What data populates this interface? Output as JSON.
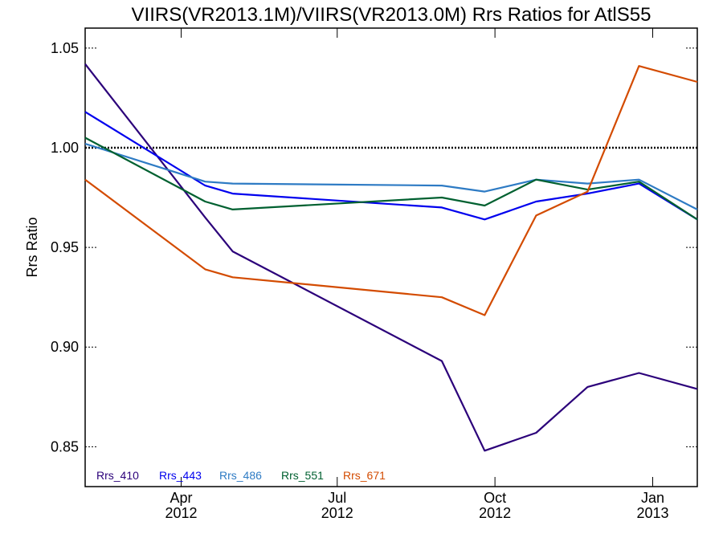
{
  "chart_data": {
    "type": "line",
    "title": "VIIRS(VR2013.1M)/VIIRS(VR2013.0M)  Rrs Ratios for AtlS55",
    "xlabel": "",
    "ylabel": "Rrs Ratio",
    "xlim": [
      "2012-02-05",
      "2013-01-27"
    ],
    "ylim": [
      0.83,
      1.06
    ],
    "y_ticks": [
      0.85,
      0.9,
      0.95,
      1.0,
      1.05
    ],
    "y_tick_labels": [
      "0.85",
      "0.90",
      "0.95",
      "1.00",
      "1.05"
    ],
    "x_ticks": [
      {
        "date": "2012-04-01",
        "month": "Apr",
        "year": "2012"
      },
      {
        "date": "2012-07-01",
        "month": "Jul",
        "year": "2012"
      },
      {
        "date": "2012-10-01",
        "month": "Oct",
        "year": "2012"
      },
      {
        "date": "2013-01-01",
        "month": "Jan",
        "year": "2013"
      }
    ],
    "reference_line": {
      "y": 1.0,
      "style": "dotted",
      "color": "#000000"
    },
    "legend_position": "bottom-left",
    "grid": false,
    "series": [
      {
        "name": "Rrs_410",
        "color": "#2b007a",
        "points": [
          [
            "2012-02-05",
            1.042
          ],
          [
            "2012-04-15",
            0.965
          ],
          [
            "2012-05-01",
            0.948
          ],
          [
            "2012-08-31",
            0.893
          ],
          [
            "2012-09-25",
            0.848
          ],
          [
            "2012-10-25",
            0.857
          ],
          [
            "2012-11-24",
            0.88
          ],
          [
            "2012-12-24",
            0.887
          ],
          [
            "2013-01-27",
            0.879
          ]
        ]
      },
      {
        "name": "Rrs_443",
        "color": "#0000ee",
        "points": [
          [
            "2012-02-05",
            1.018
          ],
          [
            "2012-04-15",
            0.981
          ],
          [
            "2012-05-01",
            0.977
          ],
          [
            "2012-08-31",
            0.97
          ],
          [
            "2012-09-25",
            0.964
          ],
          [
            "2012-10-25",
            0.973
          ],
          [
            "2012-11-24",
            0.977
          ],
          [
            "2012-12-24",
            0.982
          ],
          [
            "2013-01-27",
            0.964
          ]
        ]
      },
      {
        "name": "Rrs_486",
        "color": "#2e7bc4",
        "points": [
          [
            "2012-02-05",
            1.002
          ],
          [
            "2012-04-15",
            0.983
          ],
          [
            "2012-05-01",
            0.982
          ],
          [
            "2012-08-31",
            0.981
          ],
          [
            "2012-09-25",
            0.978
          ],
          [
            "2012-10-25",
            0.984
          ],
          [
            "2012-11-24",
            0.982
          ],
          [
            "2012-12-24",
            0.984
          ],
          [
            "2013-01-27",
            0.969
          ]
        ]
      },
      {
        "name": "Rrs_551",
        "color": "#006030",
        "points": [
          [
            "2012-02-05",
            1.005
          ],
          [
            "2012-04-15",
            0.973
          ],
          [
            "2012-05-01",
            0.969
          ],
          [
            "2012-08-31",
            0.975
          ],
          [
            "2012-09-25",
            0.971
          ],
          [
            "2012-10-25",
            0.984
          ],
          [
            "2012-11-24",
            0.979
          ],
          [
            "2012-12-24",
            0.983
          ],
          [
            "2013-01-27",
            0.964
          ]
        ]
      },
      {
        "name": "Rrs_671",
        "color": "#d34b00",
        "points": [
          [
            "2012-02-05",
            0.984
          ],
          [
            "2012-04-15",
            0.939
          ],
          [
            "2012-05-01",
            0.935
          ],
          [
            "2012-08-31",
            0.925
          ],
          [
            "2012-09-25",
            0.916
          ],
          [
            "2012-10-25",
            0.966
          ],
          [
            "2012-11-24",
            0.978
          ],
          [
            "2012-12-24",
            1.041
          ],
          [
            "2013-01-27",
            1.033
          ]
        ]
      }
    ]
  }
}
